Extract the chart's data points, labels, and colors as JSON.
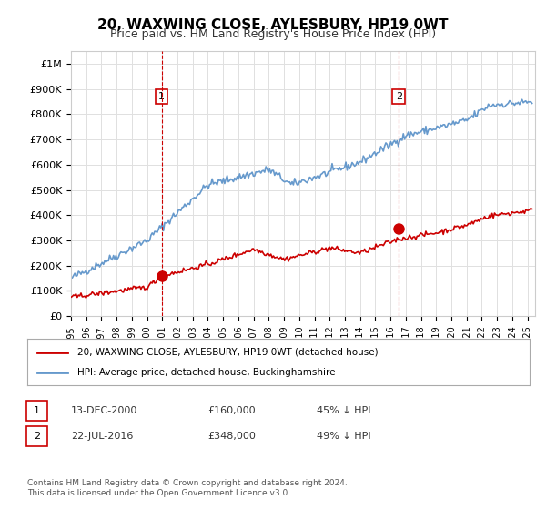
{
  "title": "20, WAXWING CLOSE, AYLESBURY, HP19 0WT",
  "subtitle": "Price paid vs. HM Land Registry's House Price Index (HPI)",
  "title_fontsize": 11,
  "subtitle_fontsize": 9,
  "background_color": "#ffffff",
  "plot_bg_color": "#ffffff",
  "grid_color": "#e0e0e0",
  "ylabel_ticks": [
    "£0",
    "£100K",
    "£200K",
    "£300K",
    "£400K",
    "£500K",
    "£600K",
    "£700K",
    "£800K",
    "£900K",
    "£1M"
  ],
  "ytick_values": [
    0,
    100000,
    200000,
    300000,
    400000,
    500000,
    600000,
    700000,
    800000,
    900000,
    1000000
  ],
  "ylim": [
    0,
    1050000
  ],
  "xlim_start": 1995.0,
  "xlim_end": 2025.5,
  "hpi_color": "#6699cc",
  "price_color": "#cc0000",
  "vline_color": "#cc0000",
  "vline_style": "--",
  "purchase1_year": 2000.96,
  "purchase1_price": 160000,
  "purchase1_label": "1",
  "purchase2_year": 2016.55,
  "purchase2_price": 348000,
  "purchase2_label": "2",
  "marker_color": "#cc0000",
  "marker_size": 8,
  "legend_label_red": "20, WAXWING CLOSE, AYLESBURY, HP19 0WT (detached house)",
  "legend_label_blue": "HPI: Average price, detached house, Buckinghamshire",
  "table_rows": [
    {
      "num": "1",
      "date": "13-DEC-2000",
      "price": "£160,000",
      "hpi": "45% ↓ HPI"
    },
    {
      "num": "2",
      "date": "22-JUL-2016",
      "price": "£348,000",
      "hpi": "49% ↓ HPI"
    }
  ],
  "footer": "Contains HM Land Registry data © Crown copyright and database right 2024.\nThis data is licensed under the Open Government Licence v3.0.",
  "xtick_years": [
    1995,
    1996,
    1997,
    1998,
    1999,
    2000,
    2001,
    2002,
    2003,
    2004,
    2005,
    2006,
    2007,
    2008,
    2009,
    2010,
    2011,
    2012,
    2013,
    2014,
    2015,
    2016,
    2017,
    2018,
    2019,
    2020,
    2021,
    2022,
    2023,
    2024,
    2025
  ]
}
